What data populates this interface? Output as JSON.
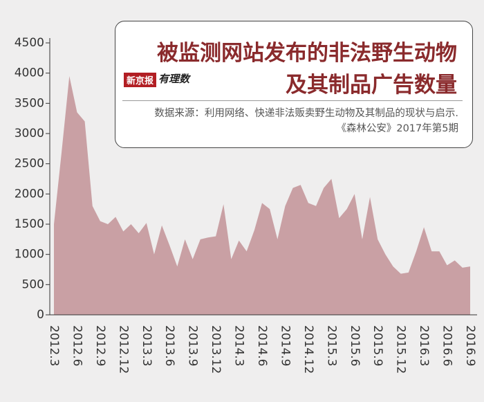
{
  "chart_data": {
    "type": "area",
    "title": "被监测网站发布的非法野生动物",
    "subtitle": "及其制品广告数量",
    "brand": "新京报",
    "brand_sub": "有理数",
    "source": "数据来源：利用网络、快递非法贩卖野生动物及其制品的现状与启示.《森林公安》2017年第5期",
    "categories": [
      "2012.3",
      null,
      null,
      "2012.6",
      null,
      null,
      "2012.9",
      null,
      null,
      "2012.12",
      null,
      null,
      "2013.3",
      null,
      null,
      "2013.6",
      null,
      null,
      "2013.9",
      null,
      null,
      "2013.12",
      null,
      null,
      "2014.3",
      null,
      null,
      "2014.6",
      null,
      null,
      "2014.9",
      null,
      null,
      "2014.12",
      null,
      null,
      "2015.3",
      null,
      null,
      "2015.6",
      null,
      null,
      "2015.9",
      null,
      null,
      "2015.12",
      null,
      null,
      "2016.3",
      null,
      null,
      "2016.6",
      null,
      null,
      "2016.9"
    ],
    "values": [
      1500,
      2700,
      3950,
      3350,
      3200,
      1800,
      1550,
      1500,
      1620,
      1380,
      1500,
      1350,
      1520,
      1000,
      1480,
      1150,
      800,
      1250,
      920,
      1250,
      1280,
      1300,
      1830,
      920,
      1230,
      1050,
      1400,
      1850,
      1750,
      1250,
      1800,
      2100,
      2150,
      1850,
      1800,
      2100,
      2250,
      1600,
      1750,
      2000,
      1250,
      1950,
      1250,
      1000,
      800,
      680,
      700,
      1050,
      1450,
      1050,
      1050,
      820,
      900,
      780,
      800
    ],
    "color": "#c9a0a4",
    "ylim": [
      0,
      4500
    ],
    "yticks": [
      0,
      500,
      1000,
      1500,
      2000,
      2500,
      3000,
      3500,
      4000,
      4500
    ]
  }
}
